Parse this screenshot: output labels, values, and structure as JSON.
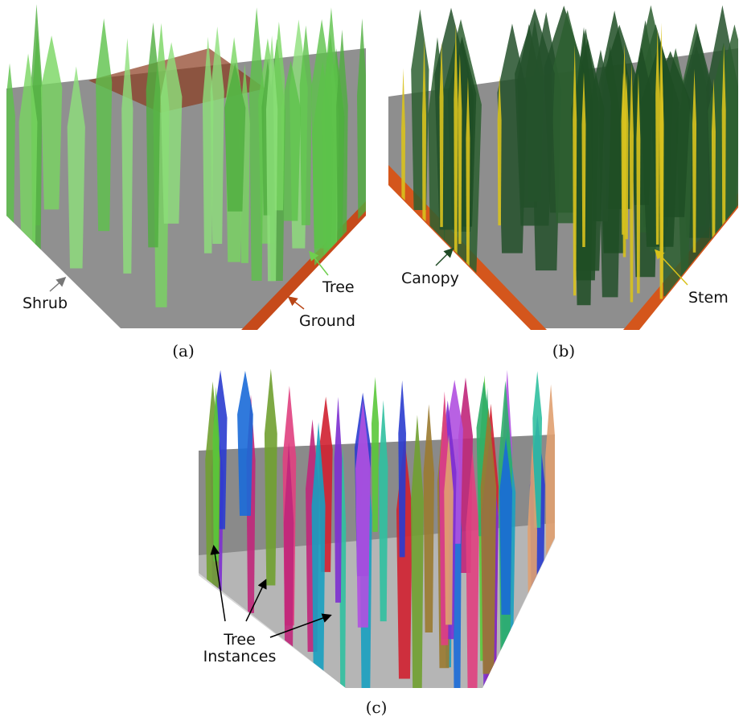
{
  "panels": [
    {
      "caption": "(a)",
      "labels": [
        "Shrub",
        "Tree",
        "Ground"
      ]
    },
    {
      "caption": "(b)",
      "labels": [
        "Canopy",
        "Stem"
      ]
    },
    {
      "caption": "(c)",
      "labels": [
        "Tree",
        "Instances"
      ]
    }
  ]
}
